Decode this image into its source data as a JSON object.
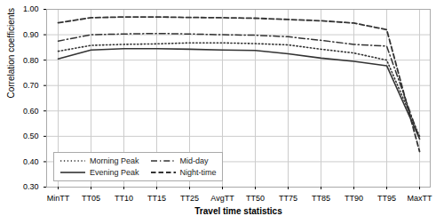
{
  "chart_data": {
    "type": "line",
    "xlabel": "Travel time statistics",
    "ylabel": "Correlation coefficients",
    "categories": [
      "MinTT",
      "TT05",
      "TT10",
      "TT15",
      "TT25",
      "AvgTT",
      "TT50",
      "TT75",
      "TT85",
      "TT90",
      "TT95",
      "MaxTT"
    ],
    "series": [
      {
        "name": "Morning Peak",
        "color": "#333333",
        "line_style": "dotted",
        "values": [
          0.835,
          0.858,
          0.862,
          0.864,
          0.868,
          0.868,
          0.865,
          0.86,
          0.843,
          0.828,
          0.8,
          0.5
        ]
      },
      {
        "name": "Mid-day",
        "color": "#333333",
        "line_style": "dashdot",
        "values": [
          0.875,
          0.9,
          0.903,
          0.905,
          0.903,
          0.9,
          0.898,
          0.892,
          0.878,
          0.862,
          0.855,
          0.49
        ]
      },
      {
        "name": "Evening Peak",
        "color": "#333333",
        "line_style": "solid",
        "values": [
          0.805,
          0.84,
          0.845,
          0.845,
          0.843,
          0.84,
          0.838,
          0.825,
          0.808,
          0.795,
          0.778,
          0.49
        ]
      },
      {
        "name": "Night-time",
        "color": "#333333",
        "line_style": "dashed",
        "values": [
          0.947,
          0.967,
          0.97,
          0.97,
          0.968,
          0.967,
          0.965,
          0.96,
          0.955,
          0.946,
          0.92,
          0.44
        ]
      }
    ],
    "ylim": [
      0.3,
      1.0
    ],
    "yticks": [
      {
        "value": 0.3,
        "label": "0.30"
      },
      {
        "value": 0.4,
        "label": "0.40"
      },
      {
        "value": 0.5,
        "label": "0.50"
      },
      {
        "value": 0.6,
        "label": "0.60"
      },
      {
        "value": 0.7,
        "label": "0.70"
      },
      {
        "value": 0.8,
        "label": "0.80"
      },
      {
        "value": 0.9,
        "label": "0.90"
      },
      {
        "value": 1.0,
        "label": "1.00"
      }
    ],
    "grid": true,
    "legend": "lower left"
  }
}
